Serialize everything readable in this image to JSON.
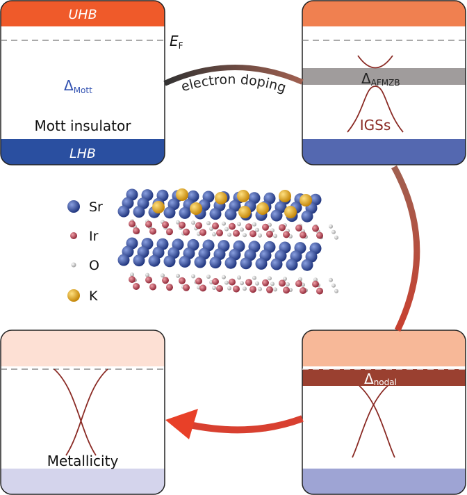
{
  "panels": {
    "mott": {
      "upper_band": "UHB",
      "lower_band": "LHB",
      "gap_symbol": "Δ",
      "gap_sub": "Mott",
      "caption": "Mott insulator"
    },
    "igs": {
      "gap_symbol": "Δ",
      "gap_sub": "AFMZB",
      "caption": "IGSs"
    },
    "nodal": {
      "gap_symbol": "Δ",
      "gap_sub": "nodal"
    },
    "metal": {
      "caption": "Metallicity"
    }
  },
  "fermi_label": {
    "main": "E",
    "sub": "F"
  },
  "arrow_label": "electron doping",
  "legend": [
    {
      "label": "Sr",
      "color": "#2a4a9a"
    },
    {
      "label": "Ir",
      "color": "#a0303a"
    },
    {
      "label": "O",
      "color": "#d8d8d8"
    },
    {
      "label": "K",
      "color": "#e8a818"
    }
  ],
  "colors": {
    "uhb": "#ef5a2a",
    "lhb": "#2a4fa0",
    "curve": "#8a2a24",
    "afmzb_band": "#a09c9c",
    "nodal_band": "#9a4030",
    "gap_text": "#3050b0"
  }
}
